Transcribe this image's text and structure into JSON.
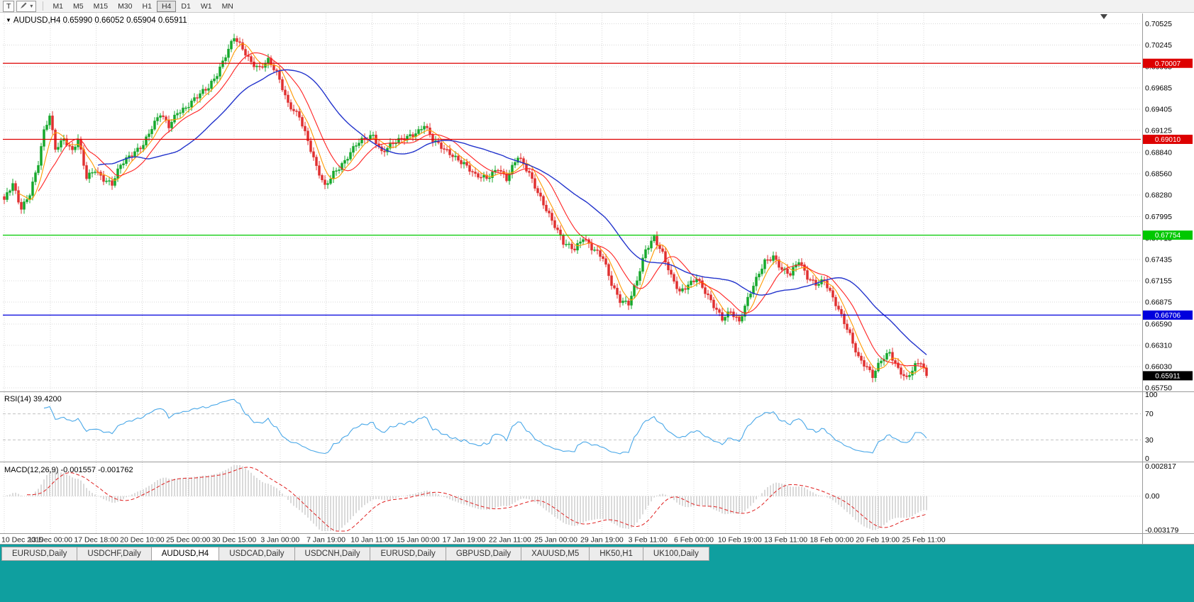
{
  "toolbar": {
    "text_tool_label": "T",
    "dropdown_caret": "▾",
    "timeframes": [
      "M1",
      "M5",
      "M15",
      "M30",
      "H1",
      "H4",
      "D1",
      "W1",
      "MN"
    ],
    "active_timeframe": "H4"
  },
  "chart_header": {
    "collapse_marker": "▼",
    "symbol_period": "AUDUSD,H4",
    "ohlc_text": "0.65990 0.66052 0.65904 0.65911"
  },
  "indicators": {
    "rsi_label": "RSI(14) 39.4200",
    "macd_label": "MACD(12,26,9) -0.001557 -0.001762"
  },
  "tabs": [
    "EURUSD,Daily",
    "USDCHF,Daily",
    "AUDUSD,H4",
    "USDCAD,Daily",
    "USDCNH,Daily",
    "EURUSD,Daily",
    "GBPUSD,Daily",
    "XAUUSD,M5",
    "HK50,H1",
    "UK100,Daily"
  ],
  "active_tab_index": 2,
  "chart_data": {
    "type": "candlestick",
    "symbol": "AUDUSD",
    "timeframe": "H4",
    "current_ohlc": {
      "open": 0.6599,
      "high": 0.66052,
      "low": 0.65904,
      "close": 0.65911
    },
    "y_axis": {
      "max": 0.7066,
      "min": 0.65715,
      "tick_labels": [
        "0.70525",
        "0.70245",
        "0.69965",
        "0.69685",
        "0.69405",
        "0.69125",
        "0.68840",
        "0.68560",
        "0.68280",
        "0.67995",
        "0.67715",
        "0.67435",
        "0.67155",
        "0.66875",
        "0.66590",
        "0.66310",
        "0.66030",
        "0.65750"
      ]
    },
    "x_labels": [
      "10 Dec 2019",
      "13 Dec 00:00",
      "17 Dec 18:00",
      "20 Dec 10:00",
      "25 Dec 00:00",
      "30 Dec 15:00",
      "3 Jan 00:00",
      "7 Jan 19:00",
      "10 Jan 11:00",
      "15 Jan 00:00",
      "17 Jan 19:00",
      "22 Jan 11:00",
      "25 Jan 00:00",
      "29 Jan 19:00",
      "3 Feb 11:00",
      "6 Feb 00:00",
      "10 Feb 19:00",
      "13 Feb 11:00",
      "18 Feb 00:00",
      "20 Feb 19:00",
      "25 Feb 11:00"
    ],
    "horizontal_lines": [
      {
        "price": 0.70007,
        "color": "#dd0000",
        "badge": "0.70007"
      },
      {
        "price": 0.6901,
        "color": "#dd0000",
        "badge": "0.69010"
      },
      {
        "price": 0.67754,
        "color": "#00c800",
        "badge": "0.67754"
      },
      {
        "price": 0.66706,
        "color": "#0000dd",
        "badge": "0.66706"
      }
    ],
    "current_price": {
      "value": 0.65911,
      "badge": "0.65911",
      "color": "#000000"
    },
    "bars_total": 326,
    "price_path_anchors": [
      [
        0,
        0.6822
      ],
      [
        3,
        0.6843
      ],
      [
        6,
        0.6812
      ],
      [
        9,
        0.683
      ],
      [
        12,
        0.6868
      ],
      [
        14,
        0.691
      ],
      [
        16,
        0.6932
      ],
      [
        18,
        0.689
      ],
      [
        21,
        0.6903
      ],
      [
        24,
        0.6885
      ],
      [
        26,
        0.69
      ],
      [
        29,
        0.685
      ],
      [
        32,
        0.6862
      ],
      [
        35,
        0.685
      ],
      [
        38,
        0.6842
      ],
      [
        41,
        0.6866
      ],
      [
        45,
        0.6882
      ],
      [
        49,
        0.6896
      ],
      [
        52,
        0.6916
      ],
      [
        55,
        0.6933
      ],
      [
        58,
        0.6918
      ],
      [
        61,
        0.6938
      ],
      [
        64,
        0.6943
      ],
      [
        68,
        0.6956
      ],
      [
        72,
        0.6969
      ],
      [
        75,
        0.6988
      ],
      [
        78,
        0.7012
      ],
      [
        81,
        0.7034
      ],
      [
        84,
        0.7018
      ],
      [
        87,
        0.7002
      ],
      [
        90,
        0.6996
      ],
      [
        93,
        0.7005
      ],
      [
        96,
        0.6987
      ],
      [
        100,
        0.6947
      ],
      [
        104,
        0.6933
      ],
      [
        107,
        0.6899
      ],
      [
        110,
        0.6863
      ],
      [
        113,
        0.6838
      ],
      [
        116,
        0.6858
      ],
      [
        120,
        0.6873
      ],
      [
        124,
        0.6893
      ],
      [
        127,
        0.6901
      ],
      [
        130,
        0.6907
      ],
      [
        133,
        0.6885
      ],
      [
        136,
        0.6893
      ],
      [
        140,
        0.69
      ],
      [
        143,
        0.6906
      ],
      [
        146,
        0.6913
      ],
      [
        148,
        0.6921
      ],
      [
        151,
        0.6899
      ],
      [
        155,
        0.6887
      ],
      [
        158,
        0.6881
      ],
      [
        162,
        0.687
      ],
      [
        166,
        0.6852
      ],
      [
        170,
        0.685
      ],
      [
        174,
        0.6865
      ],
      [
        177,
        0.6849
      ],
      [
        181,
        0.6877
      ],
      [
        185,
        0.6857
      ],
      [
        189,
        0.6825
      ],
      [
        193,
        0.6793
      ],
      [
        197,
        0.6765
      ],
      [
        201,
        0.6759
      ],
      [
        204,
        0.6773
      ],
      [
        207,
        0.6757
      ],
      [
        211,
        0.6745
      ],
      [
        214,
        0.6713
      ],
      [
        217,
        0.6691
      ],
      [
        220,
        0.6685
      ],
      [
        223,
        0.6715
      ],
      [
        226,
        0.6756
      ],
      [
        229,
        0.6774
      ],
      [
        232,
        0.6752
      ],
      [
        235,
        0.672
      ],
      [
        238,
        0.6699
      ],
      [
        241,
        0.6711
      ],
      [
        244,
        0.6721
      ],
      [
        247,
        0.6701
      ],
      [
        250,
        0.6681
      ],
      [
        253,
        0.6665
      ],
      [
        256,
        0.6677
      ],
      [
        259,
        0.6663
      ],
      [
        262,
        0.6691
      ],
      [
        265,
        0.6716
      ],
      [
        268,
        0.6741
      ],
      [
        271,
        0.6749
      ],
      [
        274,
        0.6731
      ],
      [
        277,
        0.6723
      ],
      [
        280,
        0.6741
      ],
      [
        283,
        0.6721
      ],
      [
        286,
        0.6713
      ],
      [
        289,
        0.6716
      ],
      [
        292,
        0.6691
      ],
      [
        295,
        0.6669
      ],
      [
        298,
        0.6646
      ],
      [
        301,
        0.6616
      ],
      [
        304,
        0.6601
      ],
      [
        306,
        0.6589
      ],
      [
        309,
        0.6611
      ],
      [
        312,
        0.6623
      ],
      [
        315,
        0.6601
      ],
      [
        318,
        0.6586
      ],
      [
        321,
        0.6603
      ],
      [
        323,
        0.6609
      ],
      [
        325,
        0.65911
      ]
    ],
    "candle_colors": {
      "up": "#16a82c",
      "down": "#e03030"
    },
    "grid_color": "#d8d8d8",
    "moving_averages": [
      {
        "period": 6,
        "color": "#ff9900"
      },
      {
        "period": 13,
        "color": "#ff2222"
      },
      {
        "period": 34,
        "color": "#2233cc"
      }
    ],
    "rsi": {
      "period": 14,
      "current": 39.42,
      "levels": [
        70,
        30
      ],
      "range": [
        0,
        100
      ],
      "color": "#4aa8e8",
      "axis_labels": [
        "100",
        "70",
        "30",
        "0"
      ]
    },
    "macd": {
      "fast": 12,
      "slow": 26,
      "signal": 9,
      "macd_value": -0.001557,
      "signal_value": -0.001762,
      "axis_top_label": "0.002817",
      "axis_zero_label": "0.00",
      "axis_bottom_label": "-0.003179",
      "range": [
        -0.003179,
        0.002817
      ],
      "hist_color": "#b4b4b4",
      "signal_color": "#e02020"
    }
  }
}
